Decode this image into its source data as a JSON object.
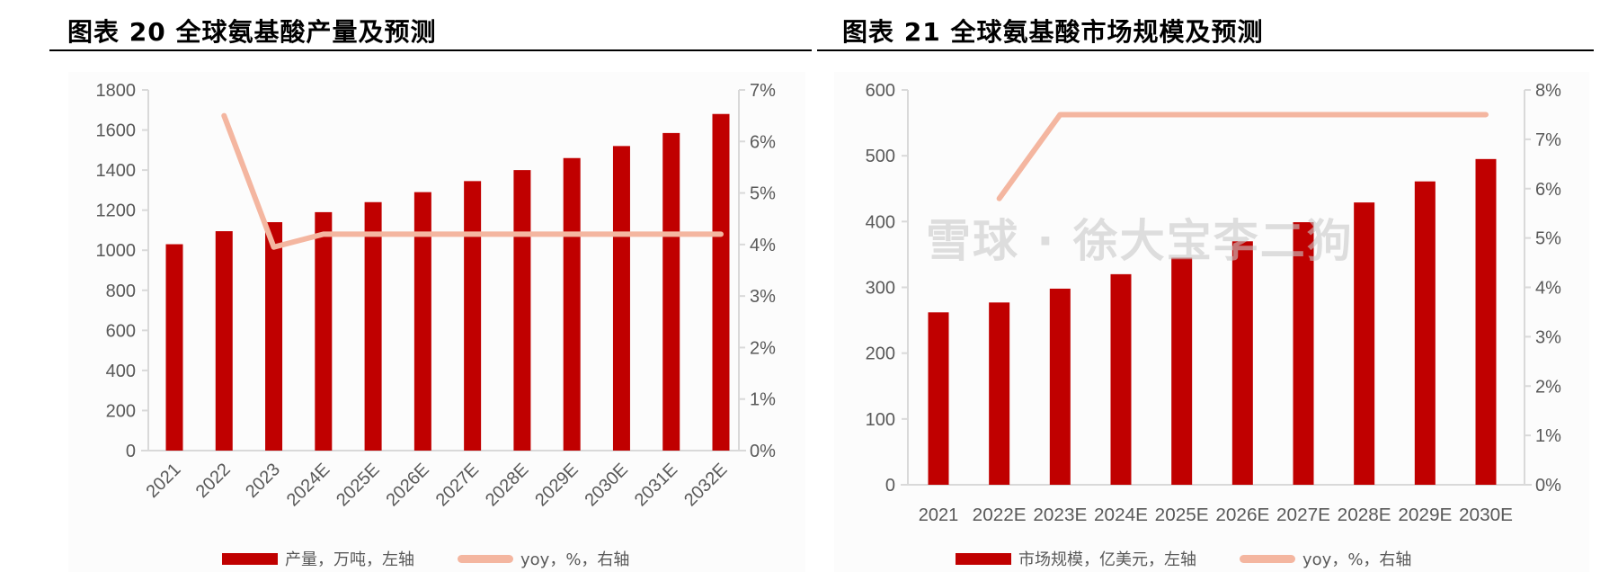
{
  "left_title": "图表 20 全球氨基酸产量及预测",
  "right_title": "图表 21 全球氨基酸市场规模及预测",
  "watermark": "雪球 · 徐大宝李二狗",
  "colors": {
    "bar": "#C00000",
    "line": "#F4B6A0",
    "axis": "#D9D9D9",
    "text": "#595959"
  },
  "chart_data": [
    {
      "type": "bar+line",
      "categories": [
        "2021",
        "2022",
        "2023",
        "2024E",
        "2025E",
        "2026E",
        "2027E",
        "2028E",
        "2029E",
        "2030E",
        "2031E",
        "2032E"
      ],
      "series": [
        {
          "name": "产量，万吨，左轴",
          "type": "bar",
          "axis": "left",
          "values": [
            1030,
            1095,
            1140,
            1190,
            1240,
            1290,
            1345,
            1400,
            1460,
            1520,
            1585,
            1680
          ]
        },
        {
          "name": "yoy，%，右轴",
          "type": "line",
          "axis": "right",
          "values": [
            null,
            6.5,
            3.95,
            4.2,
            4.2,
            4.2,
            4.2,
            4.2,
            4.2,
            4.2,
            4.2,
            4.2
          ]
        }
      ],
      "ylim_left": [
        0,
        1800
      ],
      "yticks_left": [
        "0",
        "200",
        "400",
        "600",
        "800",
        "1000",
        "1200",
        "1400",
        "1600",
        "1800"
      ],
      "ylim_right": [
        0,
        7
      ],
      "yticks_right": [
        "0%",
        "1%",
        "2%",
        "3%",
        "4%",
        "5%",
        "6%",
        "7%"
      ],
      "xlabel_rotation": -45,
      "legend": "bottom"
    },
    {
      "type": "bar+line",
      "categories": [
        "2021",
        "2022E",
        "2023E",
        "2024E",
        "2025E",
        "2026E",
        "2027E",
        "2028E",
        "2029E",
        "2030E"
      ],
      "series": [
        {
          "name": "市场规模，亿美元，左轴",
          "type": "bar",
          "axis": "left",
          "values": [
            262,
            277,
            298,
            320,
            345,
            370,
            399,
            429,
            461,
            495
          ]
        },
        {
          "name": "yoy，%，右轴",
          "type": "line",
          "axis": "right",
          "values": [
            null,
            5.8,
            7.5,
            7.5,
            7.5,
            7.5,
            7.5,
            7.5,
            7.5,
            7.5
          ]
        }
      ],
      "ylim_left": [
        0,
        600
      ],
      "yticks_left": [
        "0",
        "100",
        "200",
        "300",
        "400",
        "500",
        "600"
      ],
      "ylim_right": [
        0,
        8
      ],
      "yticks_right": [
        "0%",
        "1%",
        "2%",
        "3%",
        "4%",
        "5%",
        "6%",
        "7%",
        "8%"
      ],
      "xlabel_rotation": 0,
      "legend": "bottom"
    }
  ]
}
